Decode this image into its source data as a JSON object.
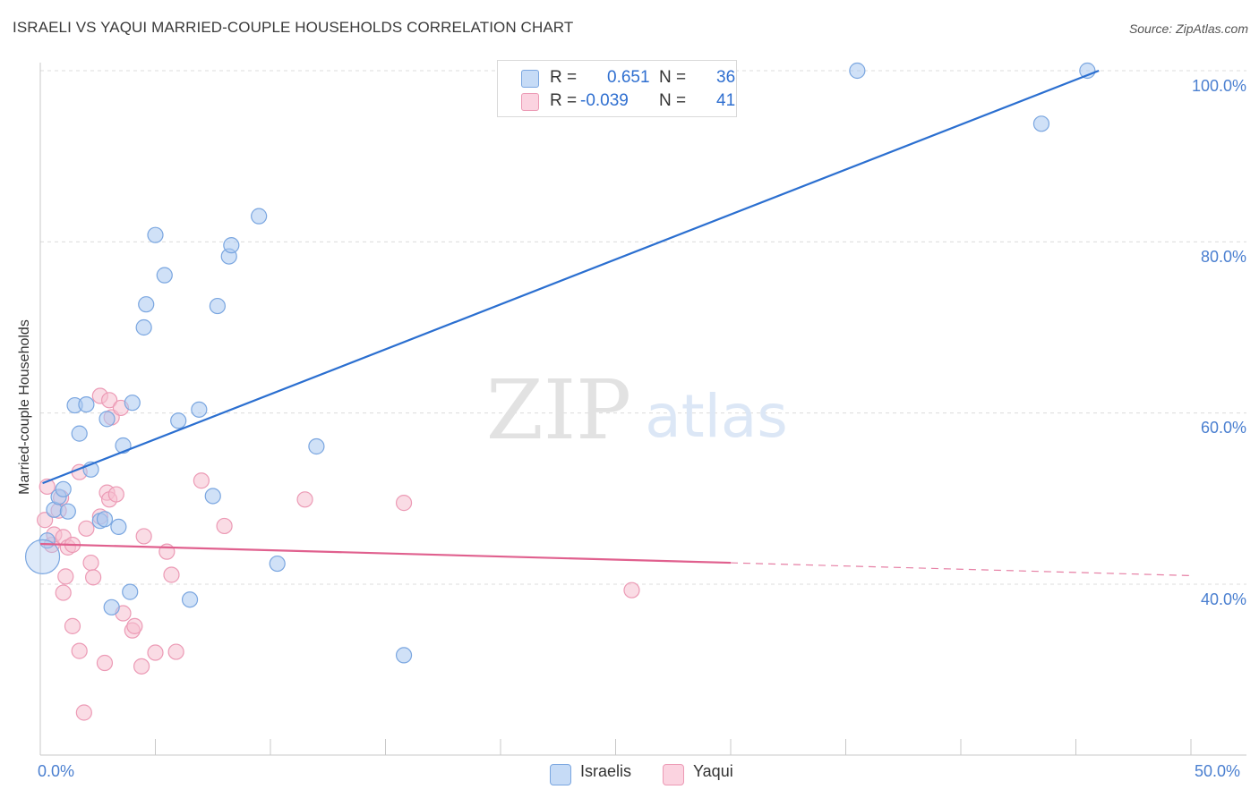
{
  "title": "ISRAELI VS YAQUI MARRIED-COUPLE HOUSEHOLDS CORRELATION CHART",
  "source": "Source: ZipAtlas.com",
  "watermark": {
    "zip": "ZIP",
    "atlas": "atlas"
  },
  "legend": {
    "israelis": {
      "r_label": "R =",
      "r_value": "0.651",
      "n_label": "N =",
      "n_value": "36"
    },
    "yaqui": {
      "r_label": "R =",
      "r_value": "-0.039",
      "n_label": "N =",
      "n_value": "41"
    }
  },
  "bottom_legend": {
    "israelis": "Israelis",
    "yaqui": "Yaqui"
  },
  "colors": {
    "israelis_fill": "#a9c8f0",
    "israelis_stroke": "#7aa6e0",
    "israelis_line": "#2b6fd0",
    "yaqui_fill": "#f6bfd0",
    "yaqui_stroke": "#ec9ab5",
    "yaqui_line": "#e0608e",
    "tick_label": "#4a7fd0"
  },
  "chart_data": {
    "type": "scatter",
    "title": "ISRAELI VS YAQUI MARRIED-COUPLE HOUSEHOLDS CORRELATION CHART",
    "xlabel": "",
    "ylabel": "Married-couple Households",
    "xlim": [
      0,
      50
    ],
    "ylim": [
      20,
      102
    ],
    "x_tick_labels": [
      {
        "value": 0,
        "label": "0.0%"
      },
      {
        "value": 50,
        "label": "50.0%"
      }
    ],
    "y_tick_labels": [
      {
        "value": 100,
        "label": "100.0%"
      },
      {
        "value": 80,
        "label": "80.0%"
      },
      {
        "value": 60,
        "label": "60.0%"
      },
      {
        "value": 40,
        "label": "40.0%"
      }
    ],
    "series": [
      {
        "name": "Israelis",
        "r": 0.651,
        "n": 36,
        "trend": {
          "x0": 0.1,
          "y0": 51.8,
          "x1": 46.0,
          "y1": 100.0
        },
        "points": [
          [
            0.3,
            45.1
          ],
          [
            0.6,
            48.7
          ],
          [
            0.8,
            50.2
          ],
          [
            1.0,
            51.1
          ],
          [
            1.2,
            48.5
          ],
          [
            1.5,
            60.9
          ],
          [
            1.7,
            57.6
          ],
          [
            2.0,
            61.0
          ],
          [
            2.2,
            53.4
          ],
          [
            2.6,
            47.4
          ],
          [
            2.8,
            47.6
          ],
          [
            2.9,
            59.3
          ],
          [
            3.1,
            37.3
          ],
          [
            3.4,
            46.7
          ],
          [
            3.6,
            56.2
          ],
          [
            3.9,
            39.1
          ],
          [
            4.0,
            61.2
          ],
          [
            4.5,
            70.0
          ],
          [
            4.6,
            72.7
          ],
          [
            5.0,
            80.8
          ],
          [
            5.4,
            76.1
          ],
          [
            6.0,
            59.1
          ],
          [
            6.5,
            38.2
          ],
          [
            6.9,
            60.4
          ],
          [
            7.5,
            50.3
          ],
          [
            7.7,
            72.5
          ],
          [
            8.2,
            78.3
          ],
          [
            8.3,
            79.6
          ],
          [
            9.5,
            83.0
          ],
          [
            10.3,
            42.4
          ],
          [
            12.0,
            56.1
          ],
          [
            15.8,
            31.7
          ],
          [
            35.5,
            100.0
          ],
          [
            43.5,
            93.8
          ],
          [
            45.5,
            100.0
          ],
          [
            0.1,
            43.2
          ]
        ]
      },
      {
        "name": "Yaqui",
        "r": -0.039,
        "n": 41,
        "trend": {
          "x0": 0.0,
          "y0": 44.7,
          "x1": 30.0,
          "y1": 42.5,
          "dashed_to_x": 50.0,
          "dashed_to_y": 41.0
        },
        "points": [
          [
            0.2,
            47.5
          ],
          [
            0.3,
            51.4
          ],
          [
            0.5,
            44.6
          ],
          [
            0.6,
            45.8
          ],
          [
            0.8,
            48.6
          ],
          [
            0.9,
            50.1
          ],
          [
            1.0,
            45.5
          ],
          [
            1.0,
            39.0
          ],
          [
            1.1,
            40.9
          ],
          [
            1.2,
            44.3
          ],
          [
            1.4,
            44.6
          ],
          [
            1.4,
            35.1
          ],
          [
            1.7,
            32.2
          ],
          [
            1.7,
            53.1
          ],
          [
            1.9,
            25.0
          ],
          [
            2.0,
            46.5
          ],
          [
            2.2,
            42.5
          ],
          [
            2.3,
            40.8
          ],
          [
            2.6,
            47.9
          ],
          [
            2.6,
            62.0
          ],
          [
            2.8,
            30.8
          ],
          [
            2.9,
            50.7
          ],
          [
            3.0,
            61.5
          ],
          [
            3.0,
            49.9
          ],
          [
            3.1,
            59.5
          ],
          [
            3.3,
            50.5
          ],
          [
            3.5,
            60.6
          ],
          [
            3.6,
            36.6
          ],
          [
            4.0,
            34.6
          ],
          [
            4.1,
            35.1
          ],
          [
            4.4,
            30.4
          ],
          [
            4.5,
            45.6
          ],
          [
            5.0,
            32.0
          ],
          [
            5.5,
            43.8
          ],
          [
            5.7,
            41.1
          ],
          [
            5.9,
            32.1
          ],
          [
            7.0,
            52.1
          ],
          [
            8.0,
            46.8
          ],
          [
            11.5,
            49.9
          ],
          [
            15.8,
            49.5
          ],
          [
            25.7,
            39.3
          ]
        ]
      }
    ]
  }
}
